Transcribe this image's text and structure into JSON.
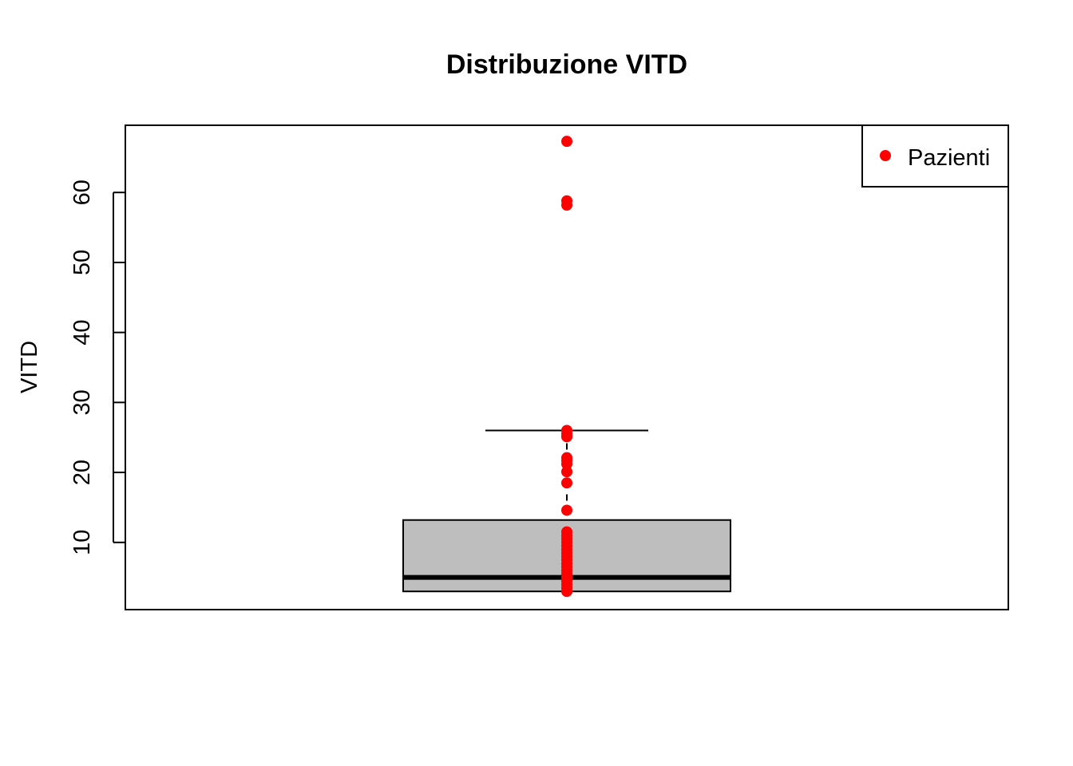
{
  "chart_data": {
    "type": "boxplot",
    "title": "Distribuzione VITD",
    "xlabel": "",
    "ylabel": "VITD",
    "ylim": [
      0.4,
      69.6
    ],
    "y_ticks": [
      10,
      20,
      30,
      40,
      50,
      60
    ],
    "box": {
      "min": 3.0,
      "q1": 3.0,
      "median": 5.0,
      "q3": 13.2,
      "whisker_high": 26.0,
      "color": "#BEBEBE"
    },
    "points": {
      "name": "Pazienti",
      "color": "#FF0000",
      "values": [
        67.3,
        58.8,
        58.2,
        26.0,
        25.5,
        25.1,
        22.1,
        21.7,
        21.2,
        20.1,
        18.5,
        14.6,
        11.5,
        11.0,
        10.5,
        10.0,
        9.5,
        9.0,
        8.5,
        8.0,
        7.5,
        7.0,
        6.5,
        6.0,
        5.5,
        5.0,
        4.5,
        4.0,
        3.5,
        3.0
      ]
    },
    "legend": {
      "placement": "top-right",
      "entries": [
        "Pazienti"
      ]
    },
    "grid": false
  }
}
